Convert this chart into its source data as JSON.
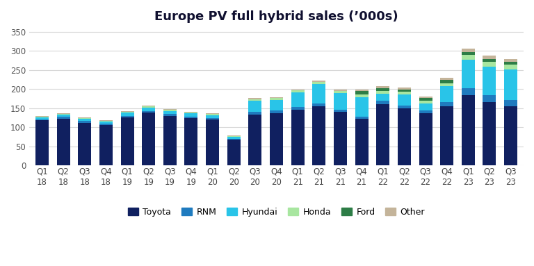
{
  "title": "Europe PV full hybrid sales (’000s)",
  "categories": [
    "Q1\n18",
    "Q2\n18",
    "Q3\n18",
    "Q4\n18",
    "Q1\n19",
    "Q2\n19",
    "Q3\n19",
    "Q4\n19",
    "Q1\n20",
    "Q2\n20",
    "Q3\n20",
    "Q4\n20",
    "Q1\n21",
    "Q2\n21",
    "Q3\n21",
    "Q4\n21",
    "Q1\n22",
    "Q2\n22",
    "Q3\n22",
    "Q4\n22",
    "Q1\n23",
    "Q2\n23",
    "Q3\n23"
  ],
  "series": {
    "Toyota": [
      118,
      122,
      112,
      106,
      126,
      138,
      130,
      124,
      120,
      67,
      133,
      136,
      145,
      155,
      140,
      122,
      161,
      149,
      137,
      155,
      184,
      166,
      155
    ],
    "RNM": [
      3,
      5,
      4,
      3,
      4,
      5,
      5,
      4,
      4,
      3,
      8,
      8,
      8,
      8,
      6,
      6,
      8,
      8,
      7,
      10,
      18,
      18,
      16
    ],
    "Hyundai": [
      5,
      6,
      6,
      5,
      8,
      8,
      8,
      8,
      8,
      5,
      28,
      28,
      38,
      50,
      43,
      50,
      18,
      28,
      18,
      42,
      75,
      75,
      80
    ],
    "Honda": [
      2,
      2,
      2,
      2,
      3,
      3,
      3,
      3,
      2,
      1,
      4,
      4,
      5,
      5,
      5,
      8,
      8,
      8,
      8,
      8,
      12,
      12,
      12
    ],
    "Ford": [
      0,
      0,
      0,
      0,
      0,
      0,
      0,
      0,
      0,
      0,
      0,
      0,
      0,
      0,
      0,
      8,
      8,
      6,
      6,
      8,
      8,
      8,
      8
    ],
    "Other": [
      2,
      2,
      2,
      2,
      2,
      2,
      2,
      2,
      2,
      2,
      3,
      3,
      3,
      4,
      4,
      5,
      5,
      5,
      5,
      7,
      8,
      8,
      8
    ]
  },
  "colors": {
    "Toyota": "#102060",
    "RNM": "#1f7bbf",
    "Hyundai": "#29c4e8",
    "Honda": "#a8e6a0",
    "Ford": "#2d7d46",
    "Other": "#c4b49a"
  },
  "ylim": [
    0,
    360
  ],
  "yticks": [
    0,
    50,
    100,
    150,
    200,
    250,
    300,
    350
  ],
  "background_color": "#ffffff",
  "title_fontsize": 13,
  "tick_fontsize": 8.5
}
